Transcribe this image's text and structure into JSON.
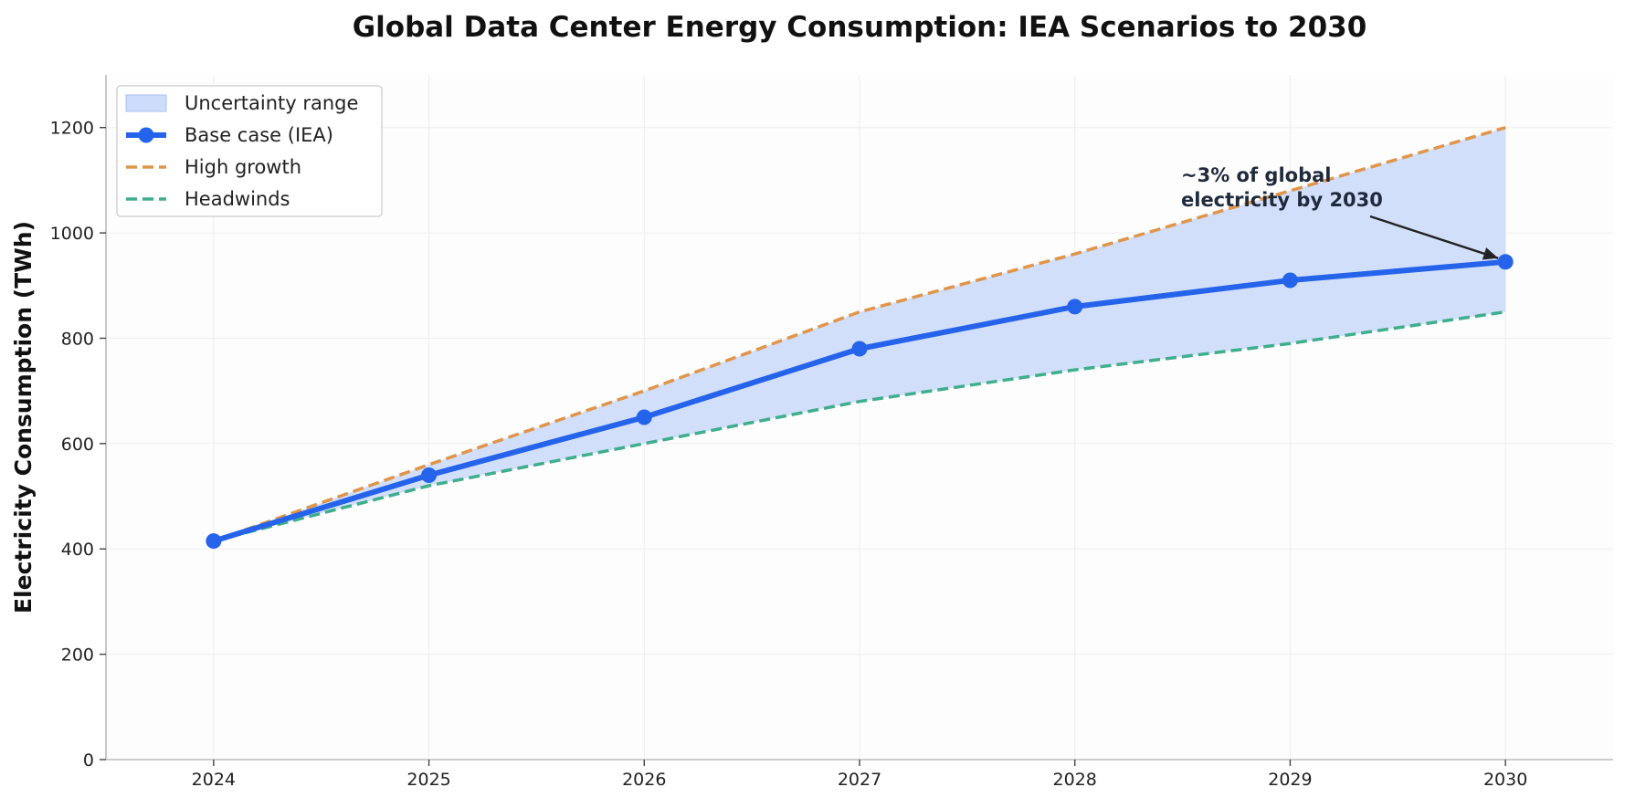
{
  "chart_data": {
    "type": "line",
    "title": "Global Data Center Energy Consumption: IEA Scenarios to 2030",
    "xlabel": "",
    "ylabel": "Electricity Consumption (TWh)",
    "x": [
      "2024",
      "2025",
      "2026",
      "2027",
      "2028",
      "2029",
      "2030"
    ],
    "xlim": [
      2023.5,
      2030.5
    ],
    "ylim": [
      0,
      1300
    ],
    "yticks": [
      0,
      200,
      400,
      600,
      800,
      1000,
      1200
    ],
    "grid": true,
    "legend_position": "top-left",
    "series": [
      {
        "name": "Base case (IEA)",
        "style": "solid-markers",
        "color": "#2563eb",
        "values": [
          415,
          540,
          650,
          780,
          860,
          910,
          945
        ]
      },
      {
        "name": "High growth",
        "style": "dashed",
        "color": "#e0954a",
        "values": [
          415,
          560,
          700,
          850,
          960,
          1080,
          1200
        ]
      },
      {
        "name": "Headwinds",
        "style": "dashed",
        "color": "#3fae8c",
        "values": [
          415,
          520,
          600,
          680,
          740,
          790,
          850
        ]
      }
    ],
    "band": {
      "name": "Uncertainty range",
      "color": "#cddcfa",
      "lower_series": "Headwinds",
      "upper_series": "High growth"
    },
    "annotations": [
      {
        "text_lines": [
          "~3% of global",
          "electricity by 2030"
        ],
        "target_x": "2030",
        "target_y": 945
      }
    ]
  }
}
